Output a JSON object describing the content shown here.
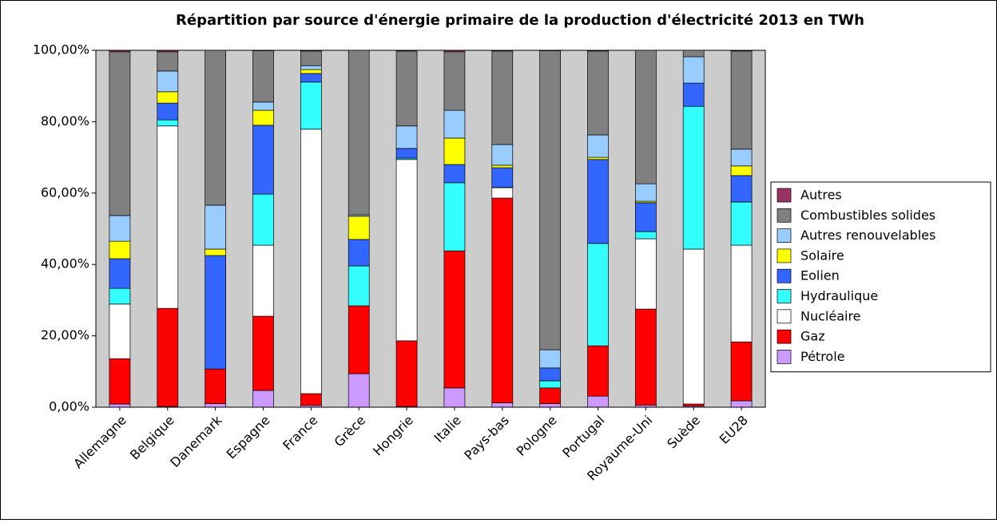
{
  "chart_data": {
    "type": "stacked-bar",
    "title": "Répartition par source d'énergie primaire de la production d'électricité 2013 en TWh",
    "categories": [
      "Allemagne",
      "Belgique",
      "Danemark",
      "Espagne",
      "France",
      "Grèce",
      "Hongrie",
      "Italie",
      "Pays-bas",
      "Pologne",
      "Portugal",
      "Royaume-Uni",
      "Suède",
      "EU28"
    ],
    "series": [
      {
        "name": "Pétrole",
        "color": "#cc99ff",
        "values": [
          0.9,
          0.2,
          1.0,
          4.7,
          0.5,
          9.4,
          0.2,
          5.4,
          1.2,
          1.0,
          3.1,
          0.6,
          0.3,
          1.8
        ]
      },
      {
        "name": "Gaz",
        "color": "#ff0000",
        "values": [
          12.7,
          27.5,
          9.7,
          20.8,
          3.3,
          19.0,
          18.4,
          38.4,
          57.4,
          4.4,
          14.1,
          26.9,
          0.6,
          16.5
        ]
      },
      {
        "name": "Nucléaire",
        "color": "#ffffff",
        "values": [
          15.3,
          51.1,
          0,
          19.9,
          74.1,
          0,
          50.8,
          0,
          2.9,
          0,
          0,
          19.7,
          43.4,
          27.1
        ]
      },
      {
        "name": "Hydraulique",
        "color": "#33ffff",
        "values": [
          4.4,
          1.7,
          0,
          14.3,
          13.2,
          11.2,
          0.4,
          19.1,
          0.1,
          2.0,
          28.7,
          2.0,
          40.0,
          12.1
        ]
      },
      {
        "name": "Eolien",
        "color": "#3366ff",
        "values": [
          8.3,
          4.7,
          31.8,
          19.3,
          2.4,
          7.4,
          2.7,
          5.1,
          5.5,
          3.6,
          23.5,
          8.1,
          6.5,
          7.4
        ]
      },
      {
        "name": "Solaire",
        "color": "#ffff00",
        "values": [
          4.9,
          3.2,
          1.8,
          4.2,
          1.1,
          6.5,
          0,
          7.4,
          0.7,
          0,
          0.6,
          0.4,
          0,
          2.7
        ]
      },
      {
        "name": "Autres renouvelables",
        "color": "#99ccff",
        "values": [
          7.2,
          5.8,
          12.3,
          2.3,
          1.1,
          0.4,
          6.3,
          7.8,
          5.8,
          5.1,
          6.3,
          4.9,
          7.4,
          4.7
        ]
      },
      {
        "name": "Combustibles solides",
        "color": "#808080",
        "values": [
          45.9,
          5.4,
          43.4,
          14.4,
          4.1,
          46.1,
          21.0,
          16.4,
          26.2,
          83.8,
          23.5,
          37.4,
          1.8,
          27.5
        ]
      },
      {
        "name": "Autres",
        "color": "#993366",
        "values": [
          0.4,
          0.4,
          0,
          0.1,
          0.2,
          0,
          0.2,
          0.4,
          0.2,
          0.1,
          0.2,
          0,
          0,
          0.2
        ]
      }
    ],
    "ylim": [
      0,
      100
    ],
    "yticks": [
      {
        "value": 0,
        "label": "0,00%"
      },
      {
        "value": 20,
        "label": "20,00%"
      },
      {
        "value": 40,
        "label": "40,00%"
      },
      {
        "value": 60,
        "label": "60,00%"
      },
      {
        "value": 80,
        "label": "80,00%"
      },
      {
        "value": 100,
        "label": "100,00%"
      }
    ],
    "grid": false,
    "legend": "right",
    "background": "#cccccc"
  }
}
